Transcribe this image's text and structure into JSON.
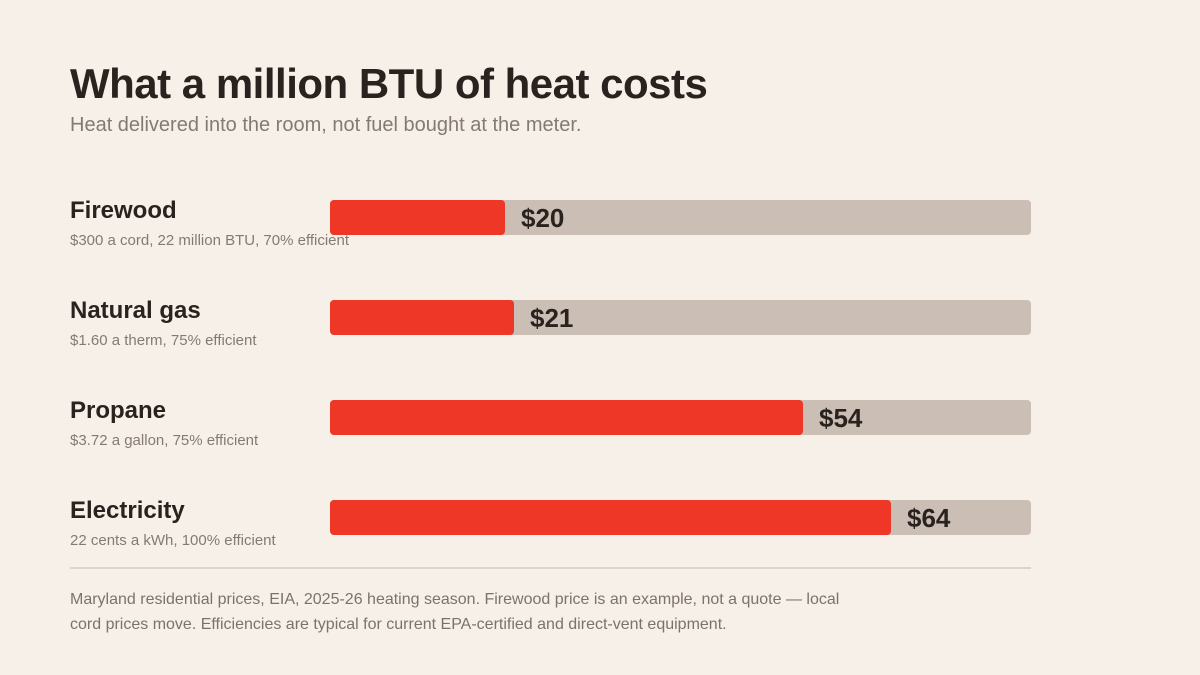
{
  "title": "What a million BTU of heat costs",
  "subtitle": "Heat delivered into the room, not fuel bought at the meter.",
  "chart_data": {
    "type": "bar",
    "orientation": "horizontal",
    "categories": [
      "Firewood",
      "Natural gas",
      "Propane",
      "Electricity"
    ],
    "values": [
      20,
      21,
      54,
      64
    ],
    "value_labels": [
      "$20",
      "$21",
      "$54",
      "$64"
    ],
    "notes": [
      "$300 a cord, 22 million BTU, 70% efficient",
      "$1.60 a therm, 75% efficient",
      "$3.72 a gallon, 75% efficient",
      "22 cents a kWh, 100% efficient"
    ],
    "xlim": [
      0,
      80
    ],
    "grid": false,
    "title": "What a million BTU of heat costs",
    "subtitle": "Heat delivered into the room, not fuel bought at the meter."
  },
  "colors": {
    "bar": "#ee3726",
    "track": "#cbbeb4",
    "background": "#f6f0e9"
  },
  "footnote": "Maryland residential prices, EIA, 2025-26 heating season. Firewood price is an example, not a quote — local cord prices move. Efficiencies are typical for current EPA-certified and direct-vent equipment."
}
